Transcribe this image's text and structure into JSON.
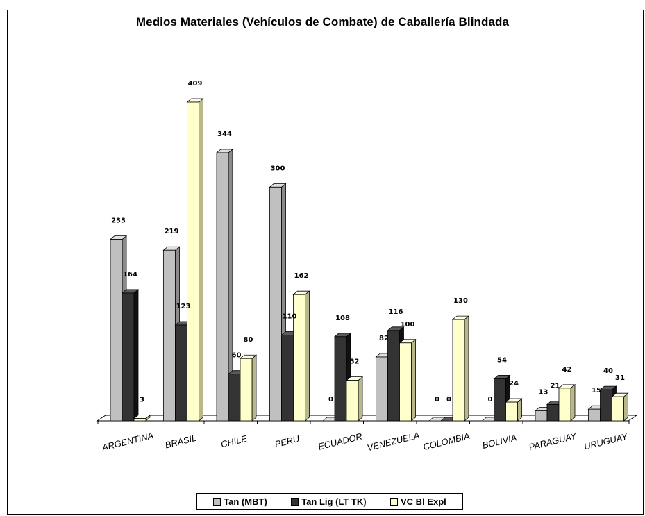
{
  "chart_data": {
    "type": "bar",
    "title": "Medios Materiales (Vehículos de Combate) de Caballería Blindada",
    "categories": [
      "ARGENTINA",
      "BRASIL",
      "CHILE",
      "PERU",
      "ECUADOR",
      "VENEZUELA",
      "COLOMBIA",
      "BOLIVIA",
      "PARAGUAY",
      "URUGUAY"
    ],
    "series": [
      {
        "name": "Tan (MBT)",
        "values": [
          233,
          219,
          344,
          300,
          0,
          82,
          0,
          0,
          13,
          15
        ],
        "color": "#c0c0c0"
      },
      {
        "name": "Tan Lig (LT TK)",
        "values": [
          164,
          123,
          60,
          110,
          108,
          116,
          0,
          54,
          21,
          40
        ],
        "color": "#333333"
      },
      {
        "name": "VC Bl Expl",
        "values": [
          3,
          409,
          80,
          162,
          52,
          100,
          130,
          24,
          42,
          31
        ],
        "color": "#ffffcc"
      }
    ],
    "data_labels": [
      [
        "233",
        "164",
        "3"
      ],
      [
        "219",
        "123",
        "409"
      ],
      [
        "344",
        "60",
        "80"
      ],
      [
        "300",
        "110",
        "162"
      ],
      [
        "0",
        "108",
        "52"
      ],
      [
        "82",
        "116",
        "100"
      ],
      [
        "0",
        "0",
        "130"
      ],
      [
        "0",
        "54",
        "24"
      ],
      [
        "13",
        "21",
        "42"
      ],
      [
        "15",
        "40",
        "31"
      ]
    ],
    "legend_position": "bottom",
    "grid": false,
    "three_d": true
  }
}
